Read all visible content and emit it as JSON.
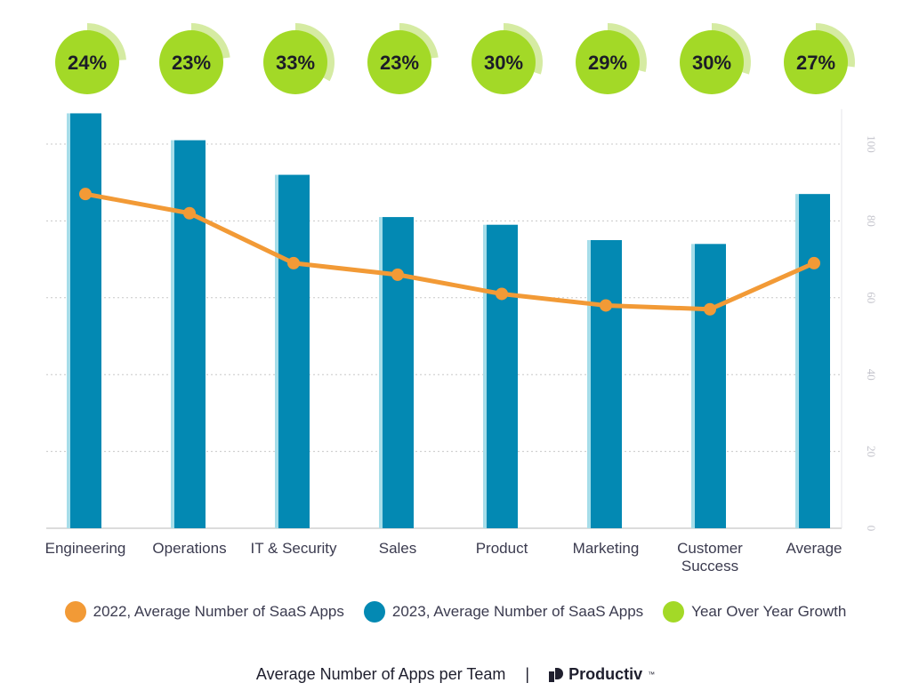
{
  "chart_data": {
    "type": "bar",
    "categories": [
      "Engineering",
      "Operations",
      "IT & Security",
      "Sales",
      "Product",
      "Marketing",
      "Customer Success",
      "Average"
    ],
    "category_lines": [
      [
        "Engineering"
      ],
      [
        "Operations"
      ],
      [
        "IT & Security"
      ],
      [
        "Sales"
      ],
      [
        "Product"
      ],
      [
        "Marketing"
      ],
      [
        "Customer",
        "Success"
      ],
      [
        "Average"
      ]
    ],
    "series": [
      {
        "name": "2023, Average Number of SaaS Apps",
        "type": "bar",
        "values": [
          108,
          101,
          92,
          81,
          79,
          75,
          74,
          87
        ]
      },
      {
        "name": "2022, Average Number of SaaS Apps",
        "type": "line",
        "values": [
          87,
          82,
          69,
          66,
          61,
          58,
          57,
          69
        ]
      },
      {
        "name": "Year Over Year Growth",
        "type": "badge",
        "values": [
          24,
          23,
          33,
          23,
          30,
          29,
          30,
          27
        ]
      }
    ],
    "growth_labels": [
      "24%",
      "23%",
      "33%",
      "23%",
      "30%",
      "29%",
      "30%",
      "27%"
    ],
    "y_axis": {
      "position": "right",
      "ylim": [
        0,
        110
      ],
      "ticks": [
        0,
        20,
        40,
        60,
        80,
        100
      ],
      "tick_labels": [
        "0",
        "20",
        "40",
        "60",
        "80",
        "100"
      ]
    },
    "grid": true,
    "legend_placement": "bottom",
    "colors": {
      "bar": "#0389b3",
      "bar_edge": "#a6dde9",
      "line": "#f29a36",
      "badge": "#a3d927",
      "badge_ring": "#d5eba2",
      "grid": "#c8c8c8",
      "axis_text": "#c4c4cc",
      "label_text": "#3b3b4f"
    }
  },
  "legend": [
    {
      "label": "2022, Average Number of SaaS Apps",
      "color": "#f29a36"
    },
    {
      "label": "2023, Average Number of SaaS Apps",
      "color": "#0389b3"
    },
    {
      "label": "Year Over Year Growth",
      "color": "#a3d927"
    }
  ],
  "footer": {
    "title": "Average Number of Apps per Team",
    "separator": "|",
    "brand": "Productiv",
    "brand_mark": "™"
  }
}
